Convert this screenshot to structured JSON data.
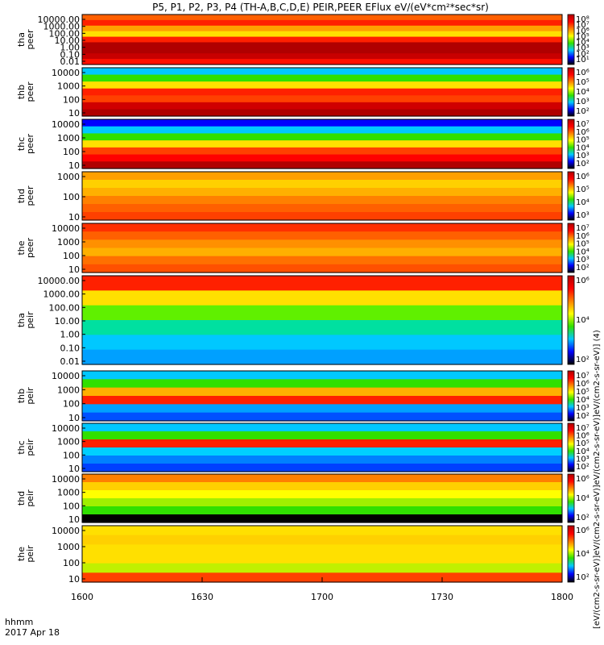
{
  "title": "P5, P1, P2, P3, P4 (TH-A,B,C,D,E) PEIR,PEER EFlux eV/(eV*cm²*sec*sr)",
  "footer": {
    "time_label": "hhmm",
    "date_label": "2017 Apr 18"
  },
  "colorbar_unit": "[eV/(cm2-s-sr-eV)]eV/(cm2-s-sr-eV)]eV/(cm2-s-sr-eV)]eV/(cm2-s-sr-eV)] (4)",
  "colors": {
    "black": "#000000",
    "blue": "#0000ff",
    "cyan": "#00c8ff",
    "green": "#30e000",
    "yellow": "#ffff00",
    "orange": "#ff8000",
    "red": "#ff0000",
    "darkred": "#b00000"
  },
  "chart_data": {
    "type": "heatmap",
    "x_axis": {
      "label": "hhmm",
      "ticks": [
        "1600",
        "1630",
        "1700",
        "1730",
        "1800"
      ],
      "range": [
        "16:00",
        "18:00"
      ],
      "date": "2017 Apr 18"
    },
    "y_scale": "log",
    "panels": [
      {
        "id": "tha-peer",
        "probe": "tha",
        "species": "peer",
        "ylabel": [
          "tha",
          "peer"
        ],
        "yticks": [
          "10000.00",
          "1000.00",
          "100.00",
          "10.00",
          "1.00",
          "0.10",
          "0.01"
        ],
        "colorbar_ticks": [
          "10⁸",
          "10⁷",
          "10⁶",
          "10⁵",
          "10⁴",
          "10³",
          "10²",
          "10¹"
        ],
        "bands": [
          [
            "#ff6000",
            "#ff2000",
            "#ffa000",
            "#ffe000",
            "#ff2000",
            "#b00000",
            "#b00000",
            "#c80000",
            "#ff1000"
          ]
        ]
      },
      {
        "id": "thb-peer",
        "probe": "thb",
        "species": "peer",
        "ylabel": [
          "thb",
          "peer"
        ],
        "yticks": [
          "10000",
          "1000",
          "100",
          "10"
        ],
        "colorbar_ticks": [
          "10⁶",
          "10⁵",
          "10⁴",
          "10³",
          "10²"
        ],
        "bands": [
          [
            "#00c8ff",
            "#30e000",
            "#ffe000",
            "#ff2000",
            "#ff4000",
            "#d00000",
            "#b00000"
          ]
        ]
      },
      {
        "id": "thc-peer",
        "probe": "thc",
        "species": "peer",
        "ylabel": [
          "thc",
          "peer"
        ],
        "yticks": [
          "10000",
          "1000",
          "100",
          "10"
        ],
        "colorbar_ticks": [
          "10⁷",
          "10⁶",
          "10⁵",
          "10⁴",
          "10³",
          "10²"
        ],
        "bands": [
          [
            "#0000ff",
            "#00c8ff",
            "#30e000",
            "#ffe000",
            "#ff4000",
            "#ff0000",
            "#b00000"
          ]
        ]
      },
      {
        "id": "thd-peer",
        "probe": "thd",
        "species": "peer",
        "ylabel": [
          "thd",
          "peer"
        ],
        "yticks": [
          "1000",
          "100",
          "10"
        ],
        "colorbar_ticks": [
          "10⁶",
          "10⁵",
          "10⁴",
          "10³"
        ],
        "bands": [
          [
            "#ffa000",
            "#ffd000",
            "#ffb000",
            "#ff8000",
            "#ff6000",
            "#ff4000"
          ]
        ]
      },
      {
        "id": "the-peer",
        "probe": "the",
        "species": "peer",
        "ylabel": [
          "the",
          "peer"
        ],
        "yticks": [
          "10000",
          "1000",
          "100",
          "10"
        ],
        "colorbar_ticks": [
          "10⁷",
          "10⁶",
          "10⁵",
          "10⁴",
          "10³",
          "10²"
        ],
        "bands": [
          [
            "#ff3000",
            "#ff6000",
            "#ff9000",
            "#ffb000",
            "#ff7000",
            "#ff5000"
          ]
        ]
      },
      {
        "id": "tha-peir",
        "probe": "tha",
        "species": "peir",
        "ylabel": [
          "tha",
          "peir"
        ],
        "yticks": [
          "10000.00",
          "1000.00",
          "100.00",
          "10.00",
          "1.00",
          "0.10",
          "0.01"
        ],
        "colorbar_ticks": [
          "10⁶",
          "10⁴",
          "10²"
        ],
        "bands": [
          [
            "#ff2000",
            "#ffe000",
            "#60f000",
            "#00e0a0",
            "#00c8ff",
            "#00a0ff"
          ]
        ]
      },
      {
        "id": "thb-peir",
        "probe": "thb",
        "species": "peir",
        "ylabel": [
          "thb",
          "peir"
        ],
        "yticks": [
          "10000",
          "1000",
          "100",
          "10"
        ],
        "colorbar_ticks": [
          "10⁷",
          "10⁶",
          "10⁵",
          "10⁴",
          "10³",
          "10²"
        ],
        "bands": [
          [
            "#00c8ff",
            "#30e000",
            "#ffb000",
            "#ff2000",
            "#00a0ff",
            "#0050ff"
          ]
        ]
      },
      {
        "id": "thc-peir",
        "probe": "thc",
        "species": "peir",
        "ylabel": [
          "thc",
          "peir"
        ],
        "yticks": [
          "10000",
          "1000",
          "100",
          "10"
        ],
        "colorbar_ticks": [
          "10⁷",
          "10⁶",
          "10⁵",
          "10⁴",
          "10³",
          "10²"
        ],
        "bands": [
          [
            "#00c8ff",
            "#30e000",
            "#ff2000",
            "#00d0ff",
            "#0080ff",
            "#0040ff"
          ]
        ]
      },
      {
        "id": "thd-peir",
        "probe": "thd",
        "species": "peir",
        "ylabel": [
          "thd",
          "peir"
        ],
        "yticks": [
          "10000",
          "1000",
          "100",
          "10"
        ],
        "colorbar_ticks": [
          "10⁶",
          "10⁴",
          "10²"
        ],
        "bands": [
          [
            "#ff8000",
            "#ffd000",
            "#ffff00",
            "#a0f000",
            "#30e000",
            "#000000"
          ]
        ]
      },
      {
        "id": "the-peir",
        "probe": "the",
        "species": "peir",
        "ylabel": [
          "the",
          "peir"
        ],
        "yticks": [
          "10000",
          "1000",
          "100",
          "10"
        ],
        "colorbar_ticks": [
          "10⁶",
          "10⁴",
          "10²"
        ],
        "bands": [
          [
            "#ffe000",
            "#ffd000",
            "#ffe000",
            "#ffe000",
            "#c0f000",
            "#ff4000"
          ]
        ]
      }
    ]
  }
}
